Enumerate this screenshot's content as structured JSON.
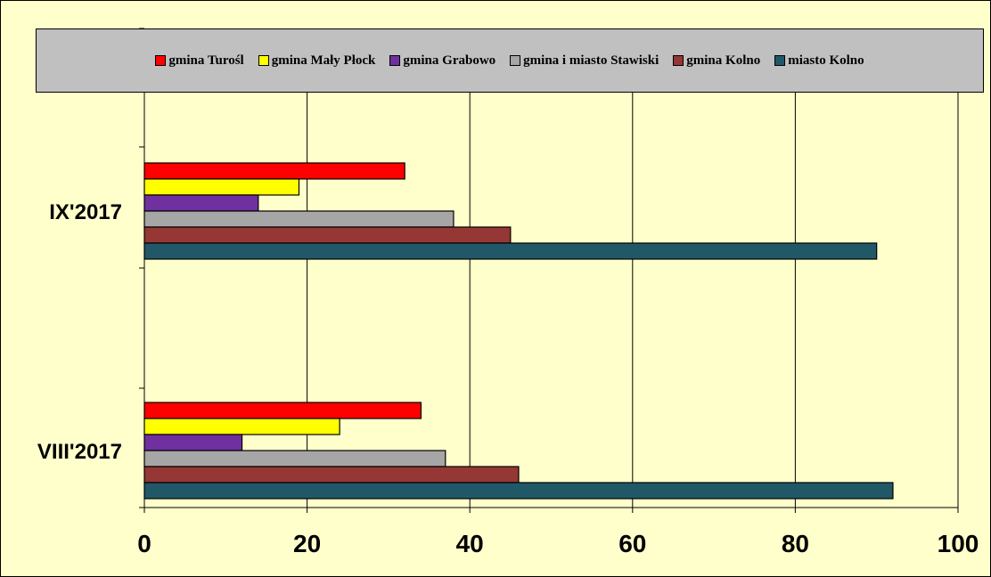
{
  "colors": {
    "background": "#FFFFCC",
    "legend_background": "#C0C0C0"
  },
  "chart_data": {
    "type": "bar",
    "orientation": "horizontal",
    "categories": [
      "IX'2017",
      "VIII'2017"
    ],
    "series": [
      {
        "name": "gmina Turośl",
        "color": "#FF0000",
        "values": [
          32,
          34
        ]
      },
      {
        "name": "gmina Mały Płock",
        "color": "#FFFF00",
        "values": [
          19,
          24
        ]
      },
      {
        "name": "gmina Grabowo",
        "color": "#7030A0",
        "values": [
          14,
          12
        ]
      },
      {
        "name": "gmina i miasto Stawiski",
        "color": "#A6A6A6",
        "values": [
          38,
          37
        ]
      },
      {
        "name": "gmina Kolno",
        "color": "#953735",
        "values": [
          45,
          46
        ]
      },
      {
        "name": "miasto Kolno",
        "color": "#215867",
        "values": [
          90,
          92
        ]
      }
    ],
    "xlim": [
      0,
      100
    ],
    "x_ticks": [
      "0",
      "20",
      "40",
      "60",
      "80",
      "100"
    ],
    "grid": true,
    "legend_position": "top"
  }
}
